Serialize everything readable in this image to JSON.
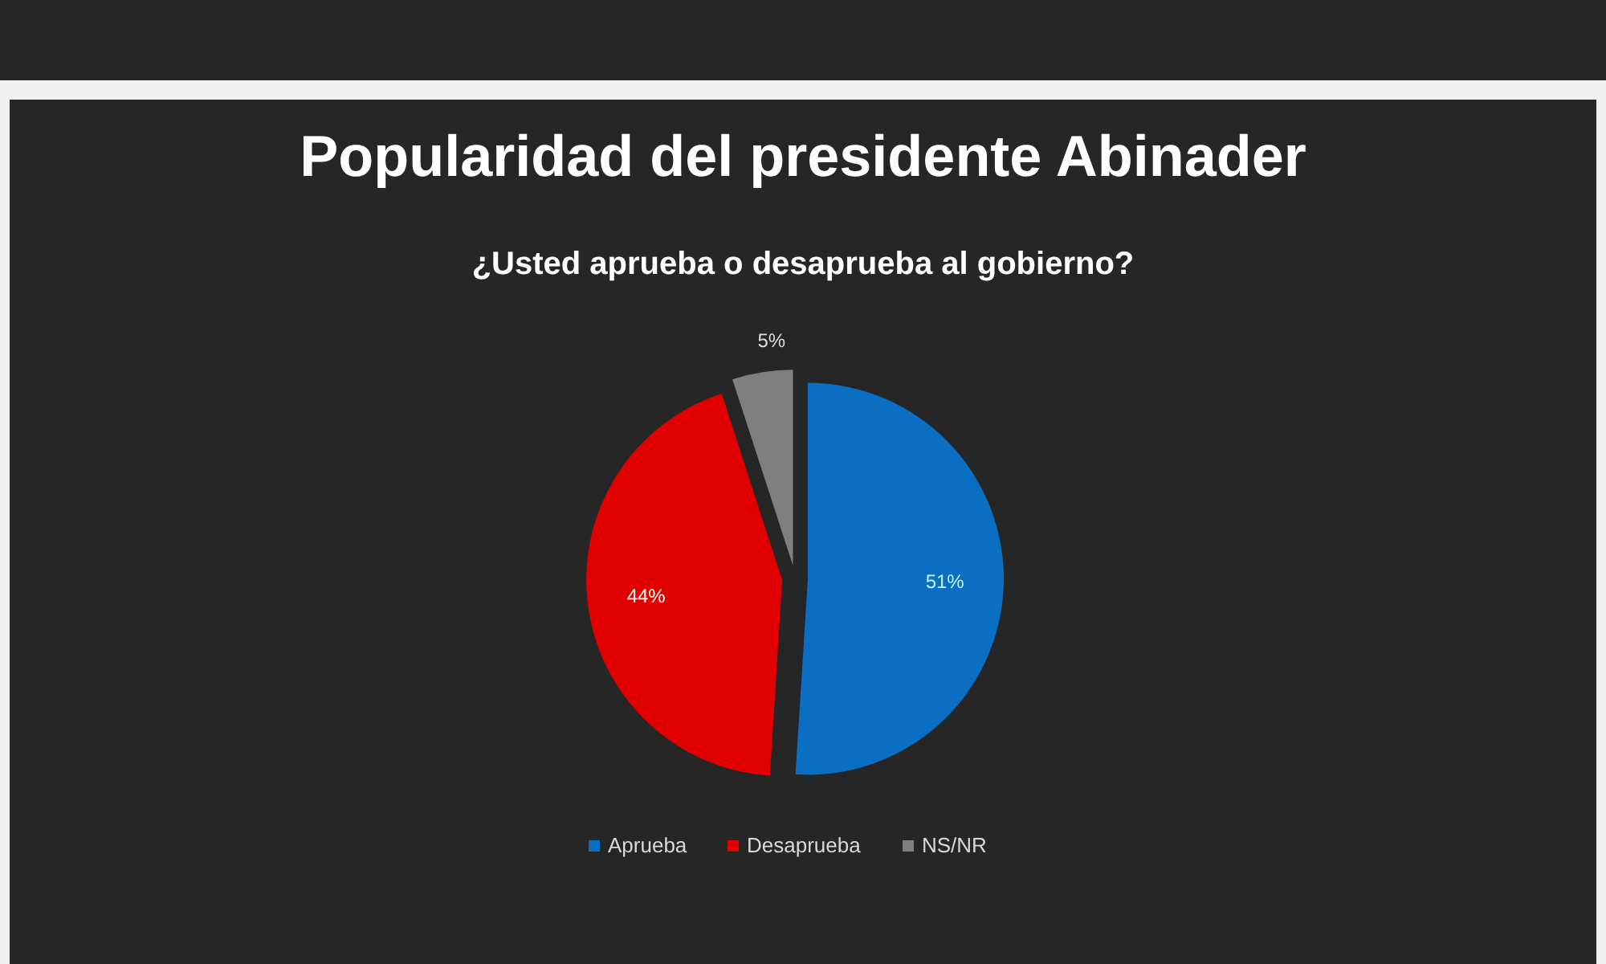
{
  "chart_data": {
    "type": "pie",
    "title": "Popularidad del presidente Abinader",
    "subtitle": "¿Usted aprueba o desaprueba al gobierno?",
    "categories": [
      "Aprueba",
      "Desaprueba",
      "NS/NR"
    ],
    "values": [
      51,
      44,
      5
    ],
    "colors": [
      "#0a6fc2",
      "#e00000",
      "#7f7f7f"
    ],
    "value_labels": [
      "51%",
      "44%",
      "5%"
    ],
    "legend": "bottom"
  }
}
